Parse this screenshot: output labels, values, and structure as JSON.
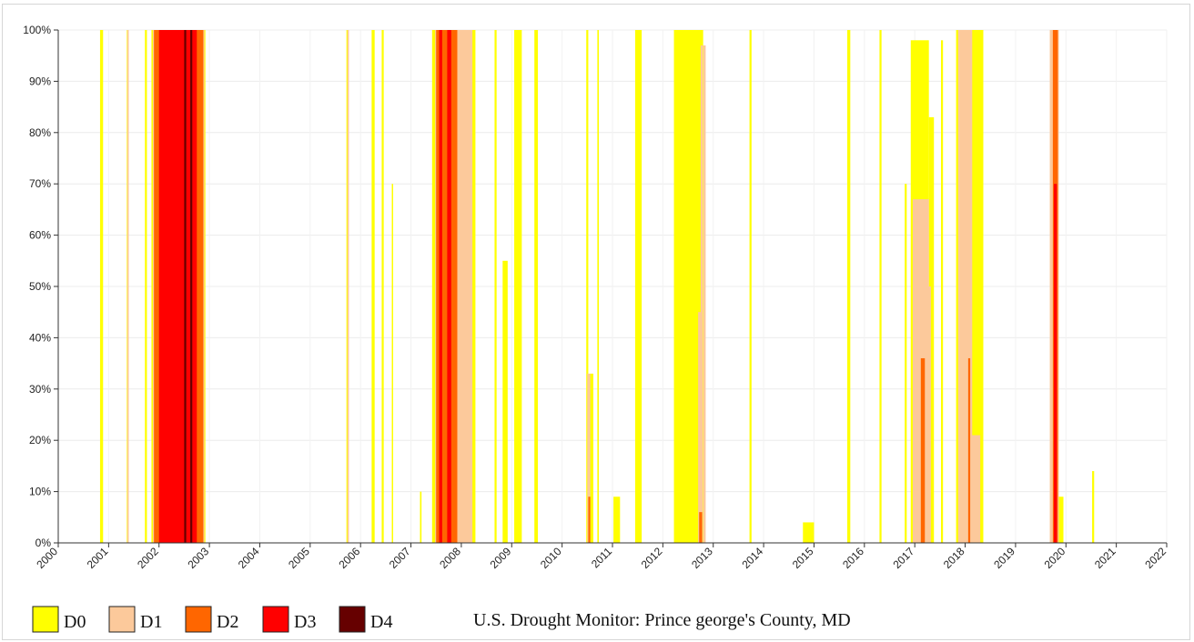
{
  "chart_data": {
    "type": "area",
    "title": "U.S. Drought Monitor: Prince george's County, MD",
    "xlabel": "",
    "ylabel": "",
    "xlim": [
      2000,
      2022
    ],
    "ylim": [
      0,
      100
    ],
    "x_ticks": [
      "2000",
      "2001",
      "2002",
      "2003",
      "2004",
      "2005",
      "2006",
      "2007",
      "2008",
      "2009",
      "2010",
      "2011",
      "2012",
      "2013",
      "2014",
      "2015",
      "2016",
      "2017",
      "2018",
      "2019",
      "2020",
      "2021",
      "2022"
    ],
    "y_ticks": [
      "0%",
      "10%",
      "20%",
      "30%",
      "40%",
      "50%",
      "60%",
      "70%",
      "80%",
      "90%",
      "100%"
    ],
    "grid": true,
    "legend_position": "bottom-left",
    "series": [
      {
        "name": "D0",
        "color": "#ffff00",
        "episodes": [
          [
            2000.83,
            2000.89,
            100
          ],
          [
            2001.36,
            2001.4,
            100
          ],
          [
            2001.72,
            2001.76,
            100
          ],
          [
            2001.85,
            2002.92,
            100
          ],
          [
            2005.72,
            2005.76,
            100
          ],
          [
            2006.22,
            2006.28,
            100
          ],
          [
            2006.42,
            2006.46,
            100
          ],
          [
            2006.62,
            2006.64,
            70
          ],
          [
            2007.18,
            2007.21,
            10
          ],
          [
            2007.42,
            2008.28,
            100
          ],
          [
            2008.66,
            2008.7,
            100
          ],
          [
            2008.82,
            2008.92,
            55
          ],
          [
            2009.05,
            2009.2,
            100
          ],
          [
            2009.45,
            2009.52,
            100
          ],
          [
            2010.48,
            2010.52,
            100
          ],
          [
            2010.55,
            2010.62,
            33
          ],
          [
            2010.7,
            2010.73,
            100
          ],
          [
            2011.02,
            2011.15,
            9
          ],
          [
            2011.45,
            2011.58,
            100
          ],
          [
            2012.22,
            2012.8,
            100
          ],
          [
            2013.72,
            2013.76,
            100
          ],
          [
            2014.78,
            2015.0,
            4
          ],
          [
            2015.66,
            2015.72,
            100
          ],
          [
            2016.3,
            2016.34,
            100
          ],
          [
            2016.8,
            2016.84,
            70
          ],
          [
            2016.92,
            2017.28,
            98
          ],
          [
            2017.28,
            2017.38,
            83
          ],
          [
            2017.52,
            2017.56,
            98
          ],
          [
            2017.82,
            2018.36,
            100
          ],
          [
            2019.7,
            2019.85,
            100
          ],
          [
            2019.85,
            2019.95,
            9
          ],
          [
            2020.52,
            2020.56,
            14
          ]
        ]
      },
      {
        "name": "D1",
        "color": "#fcc99b",
        "episodes": [
          [
            2001.37,
            2001.4,
            100
          ],
          [
            2001.88,
            2002.9,
            100
          ],
          [
            2005.74,
            2005.77,
            100
          ],
          [
            2007.48,
            2008.22,
            100
          ],
          [
            2010.5,
            2010.56,
            33
          ],
          [
            2012.7,
            2012.76,
            45
          ],
          [
            2012.75,
            2012.79,
            97
          ],
          [
            2012.8,
            2012.85,
            97
          ],
          [
            2016.96,
            2017.28,
            67
          ],
          [
            2017.08,
            2017.32,
            50
          ],
          [
            2017.86,
            2018.14,
            100
          ],
          [
            2018.1,
            2018.3,
            21
          ],
          [
            2019.68,
            2019.86,
            100
          ]
        ]
      },
      {
        "name": "D2",
        "color": "#ff6600",
        "episodes": [
          [
            2001.9,
            2002.88,
            100
          ],
          [
            2007.5,
            2007.92,
            100
          ],
          [
            2010.52,
            2010.56,
            9
          ],
          [
            2012.72,
            2012.78,
            6
          ],
          [
            2017.12,
            2017.2,
            36
          ],
          [
            2018.06,
            2018.1,
            36
          ],
          [
            2019.74,
            2019.84,
            100
          ]
        ]
      },
      {
        "name": "D3",
        "color": "#ff0000",
        "episodes": [
          [
            2002.0,
            2002.75,
            100
          ],
          [
            2007.56,
            2007.62,
            100
          ],
          [
            2007.72,
            2007.8,
            100
          ],
          [
            2019.76,
            2019.82,
            70
          ]
        ]
      },
      {
        "name": "D4",
        "color": "#660000",
        "episodes": [
          [
            2002.5,
            2002.54,
            100
          ],
          [
            2002.62,
            2002.66,
            100
          ]
        ]
      }
    ]
  }
}
